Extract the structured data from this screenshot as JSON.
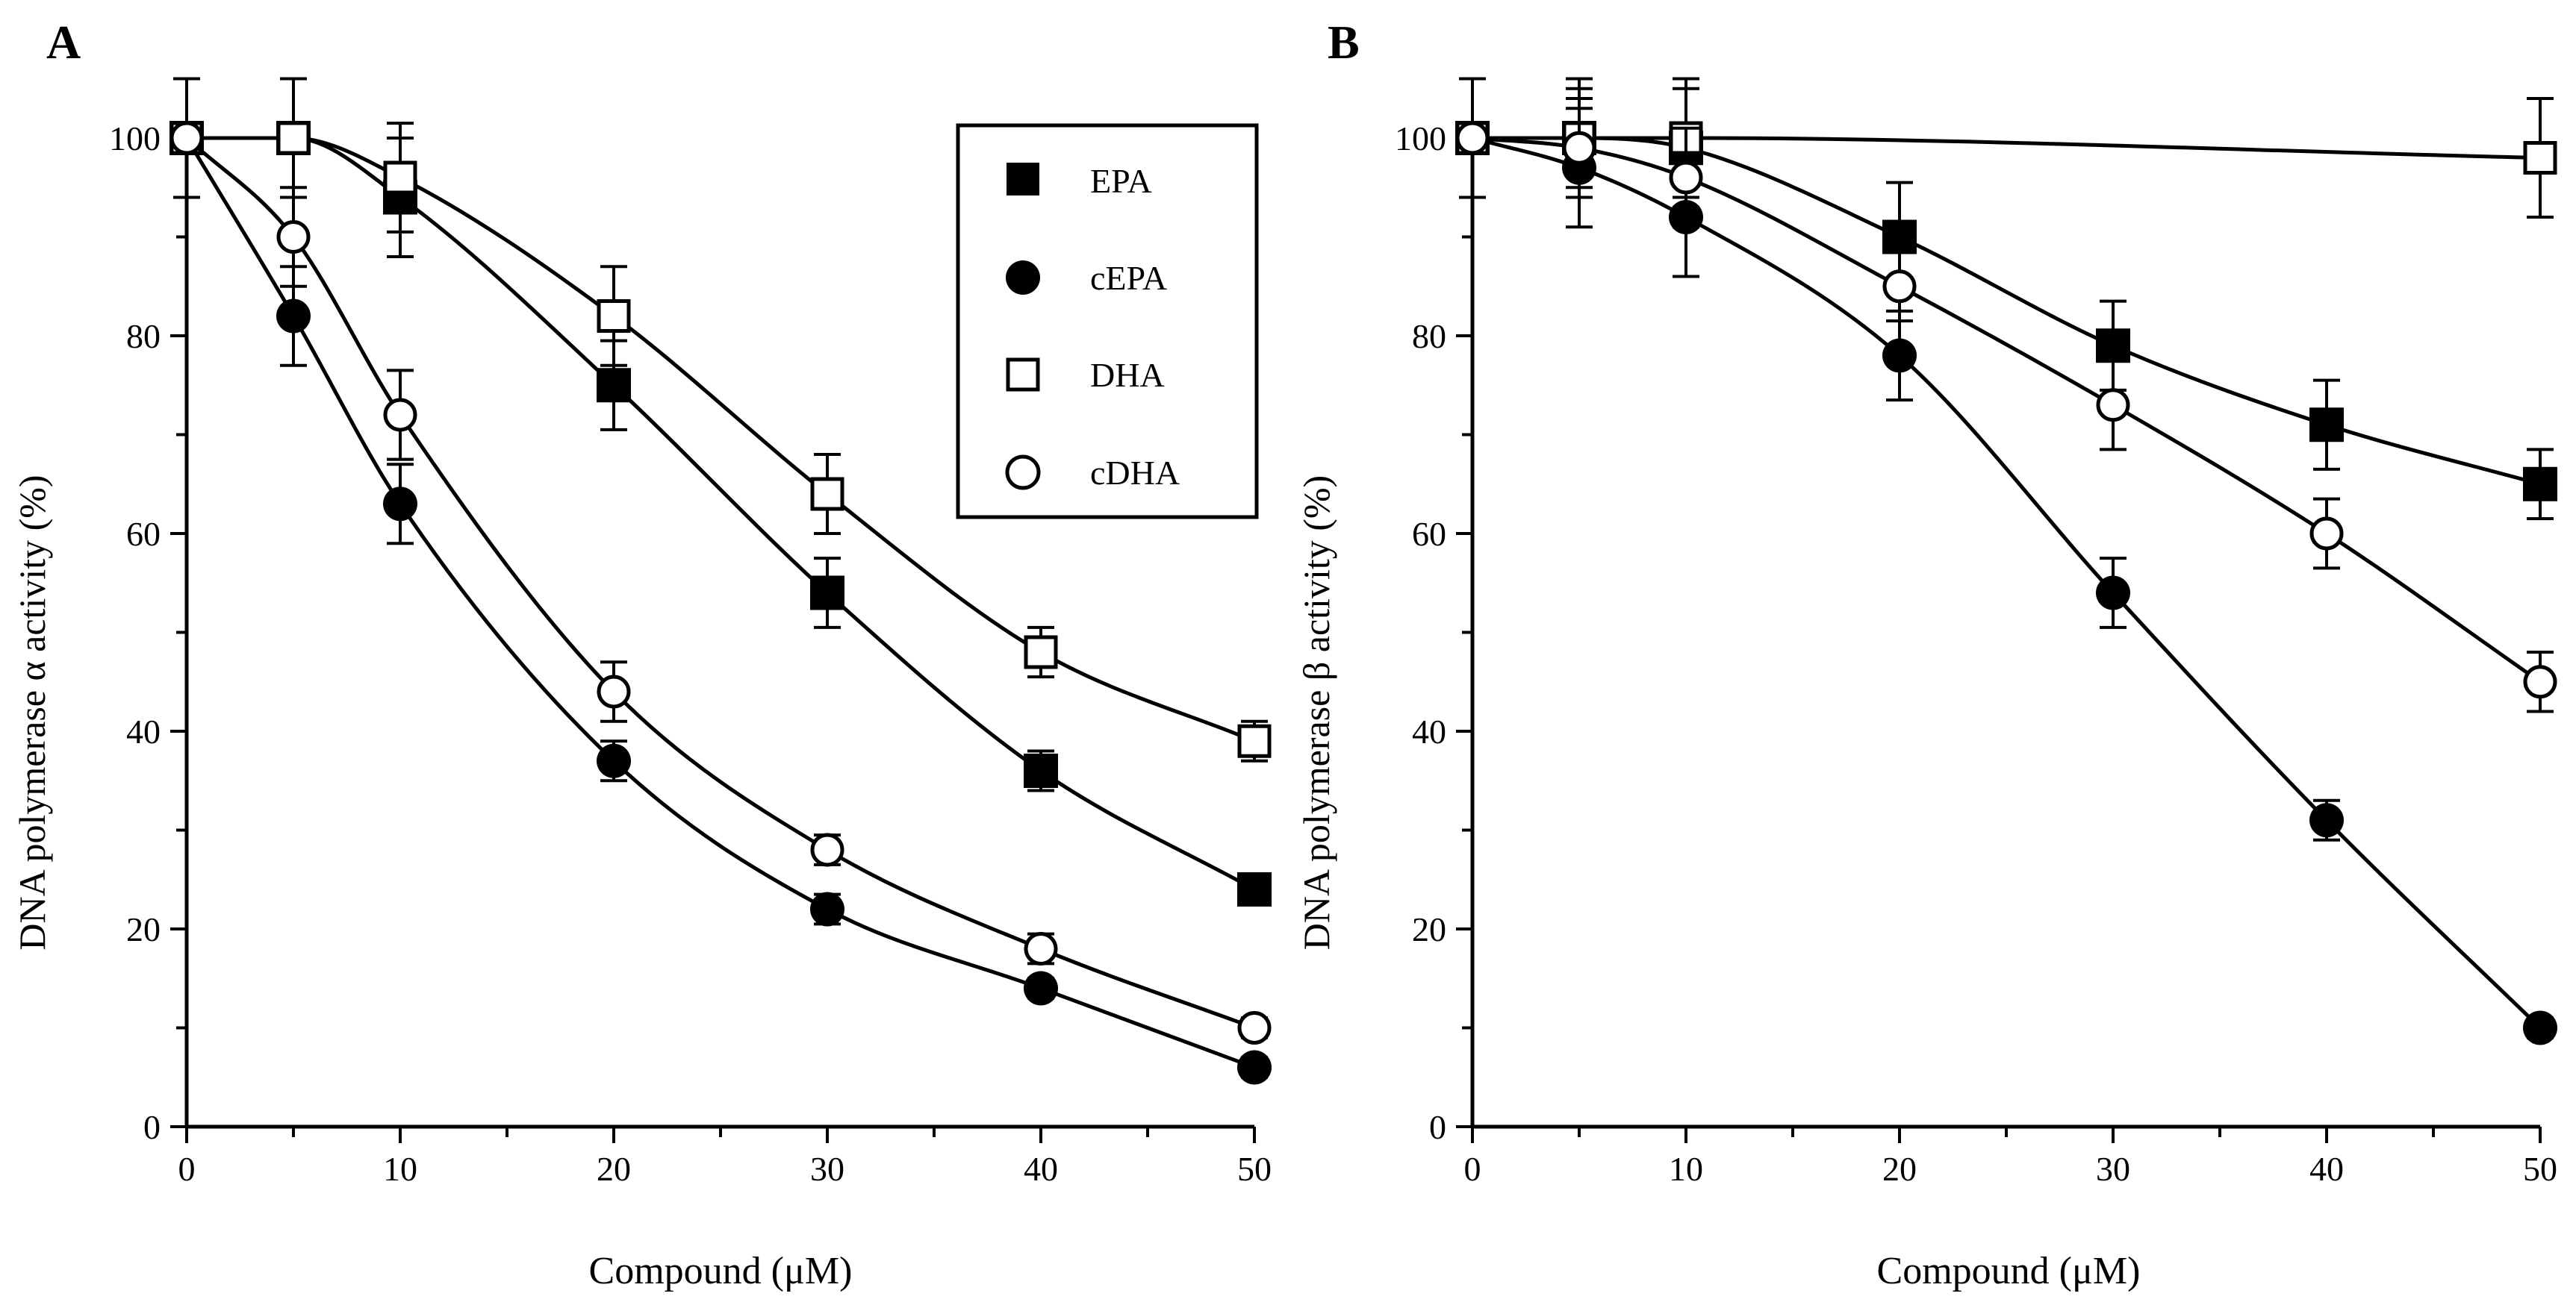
{
  "chart_data": [
    {
      "panel": "A",
      "type": "line",
      "title": "",
      "xlabel": "Compound (μM)",
      "ylabel": "DNA polymerase α activity  (%)",
      "xlim": [
        0,
        50
      ],
      "ylim": [
        0,
        100
      ],
      "x_ticks": [
        0,
        10,
        20,
        30,
        40,
        50
      ],
      "y_ticks": [
        0,
        20,
        40,
        60,
        80,
        100
      ],
      "legend_position": "top-right",
      "series": [
        {
          "name": "EPA",
          "marker": "filled-square",
          "x": [
            0,
            5,
            10,
            20,
            30,
            40,
            50
          ],
          "values": [
            100,
            100,
            94,
            75,
            54,
            36,
            24
          ],
          "errors": [
            6,
            6,
            6,
            4.5,
            3.5,
            2,
            1
          ]
        },
        {
          "name": "cEPA",
          "marker": "filled-circle",
          "x": [
            0,
            5,
            10,
            20,
            30,
            40,
            50
          ],
          "values": [
            100,
            82,
            63,
            37,
            22,
            14,
            6
          ],
          "errors": [
            6,
            5,
            4,
            2,
            1.5,
            1,
            1
          ]
        },
        {
          "name": "DHA",
          "marker": "open-square",
          "x": [
            0,
            5,
            10,
            20,
            30,
            40,
            50
          ],
          "values": [
            100,
            100,
            96,
            82,
            64,
            48,
            39
          ],
          "errors": [
            6,
            6,
            5.5,
            5,
            4,
            2.5,
            2
          ]
        },
        {
          "name": "cDHA",
          "marker": "open-circle",
          "x": [
            0,
            5,
            10,
            20,
            30,
            40,
            50
          ],
          "values": [
            100,
            90,
            72,
            44,
            28,
            18,
            10
          ],
          "errors": [
            6,
            5,
            4.5,
            3,
            1.5,
            1.5,
            1
          ]
        }
      ]
    },
    {
      "panel": "B",
      "type": "line",
      "title": "",
      "xlabel": "Compound (μM)",
      "ylabel": "DNA polymerase β activity  (%)",
      "xlim": [
        0,
        50
      ],
      "ylim": [
        0,
        100
      ],
      "x_ticks": [
        0,
        10,
        20,
        30,
        40,
        50
      ],
      "y_ticks": [
        0,
        20,
        40,
        60,
        80,
        100
      ],
      "legend_position": "none",
      "series": [
        {
          "name": "EPA",
          "marker": "filled-square",
          "x": [
            0,
            5,
            10,
            20,
            30,
            40,
            50
          ],
          "values": [
            100,
            100,
            99,
            90,
            79,
            71,
            65
          ],
          "errors": [
            6,
            6,
            6,
            5.5,
            4.5,
            4.5,
            3.5
          ]
        },
        {
          "name": "cEPA",
          "marker": "filled-circle",
          "x": [
            0,
            5,
            10,
            20,
            30,
            40,
            50
          ],
          "values": [
            100,
            97,
            92,
            78,
            54,
            31,
            10
          ],
          "errors": [
            6,
            6,
            6,
            4.5,
            3.5,
            2,
            1
          ]
        },
        {
          "name": "DHA",
          "marker": "open-square",
          "x": [
            0,
            5,
            10,
            50
          ],
          "values": [
            100,
            100,
            100,
            98
          ],
          "errors": [
            6,
            5,
            6,
            6
          ]
        },
        {
          "name": "cDHA",
          "marker": "open-circle",
          "x": [
            0,
            5,
            10,
            20,
            30,
            40,
            50
          ],
          "values": [
            100,
            99,
            96,
            85,
            73,
            60,
            45
          ],
          "errors": [
            6,
            5,
            5,
            3.5,
            4.5,
            3.5,
            3
          ]
        }
      ]
    }
  ]
}
